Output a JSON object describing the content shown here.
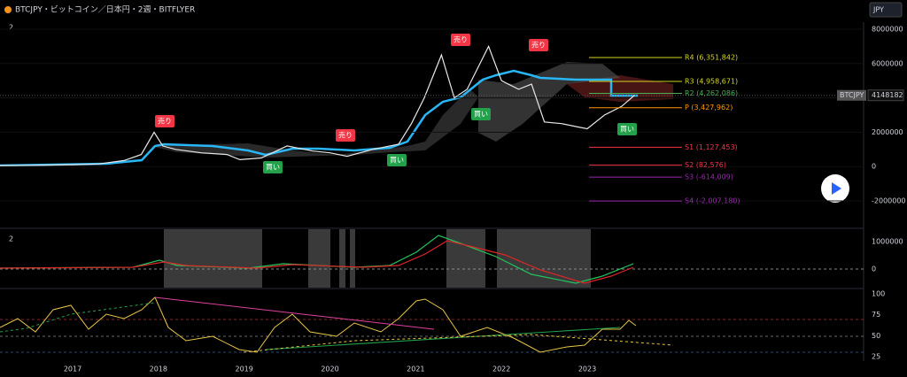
{
  "header": {
    "title": "BTCJPY・ビットコイン／日本円・2週・BITFLYER",
    "currency": "JPY",
    "pane1_toggle": "2",
    "pane2_toggle": "2"
  },
  "price_axis": {
    "ticks": [
      8000000,
      6000000,
      4000000,
      2000000,
      0,
      -2000000
    ]
  },
  "macd_axis": {
    "ticks": [
      1000000,
      0
    ]
  },
  "rsi_axis": {
    "ticks": [
      100,
      75,
      50,
      25
    ]
  },
  "time_axis": {
    "ticks": [
      2017,
      2018,
      2019,
      2020,
      2021,
      2022,
      2023
    ]
  },
  "price_tag": {
    "symbol": "BTCJPY",
    "value": 4148182
  },
  "price": {
    "x": [
      2016.1,
      2016.5,
      2017.0,
      2017.3,
      2017.6,
      2017.8,
      2017.95,
      2018.05,
      2018.2,
      2018.5,
      2018.8,
      2018.95,
      2019.2,
      2019.5,
      2019.8,
      2020.0,
      2020.2,
      2020.5,
      2020.8,
      2020.95,
      2021.1,
      2021.3,
      2021.45,
      2021.6,
      2021.85,
      2022.0,
      2022.2,
      2022.35,
      2022.5,
      2022.7,
      2022.9,
      2023.0,
      2023.2,
      2023.4,
      2023.55
    ],
    "values": [
      50000,
      70000,
      110000,
      150000,
      350000,
      700000,
      2000000,
      1200000,
      1000000,
      800000,
      700000,
      400000,
      500000,
      1200000,
      900000,
      800000,
      600000,
      1000000,
      1300000,
      2500000,
      4000000,
      6500000,
      4000000,
      4500000,
      7000000,
      5000000,
      4500000,
      4800000,
      2600000,
      2500000,
      2300000,
      2200000,
      3000000,
      3500000,
      4148182
    ]
  },
  "pivots": [
    {
      "label": "R4 (6,351,842)",
      "value": 6351842,
      "color": "#d4d41e"
    },
    {
      "label": "R3 (4,958,671)",
      "value": 4958671,
      "color": "#d4d41e"
    },
    {
      "label": "R2 (4,262,086)",
      "value": 4262086,
      "color": "#4caf50"
    },
    {
      "label": "P (3,427,962)",
      "value": 3427962,
      "color": "#ff9800"
    },
    {
      "label": "S1 (1,127,453)",
      "value": 1127453,
      "color": "#f23645"
    },
    {
      "label": "S2 (82,576)",
      "value": 82576,
      "color": "#f23645"
    },
    {
      "label": "S3 (-614,009)",
      "value": -614009,
      "color": "#9c27b0"
    },
    {
      "label": "S4 (-2,007,180)",
      "value": -2007180,
      "color": "#9c27b0"
    }
  ],
  "signals": [
    {
      "text": "売り",
      "kind": "sell"
    },
    {
      "text": "売り",
      "kind": "sell"
    },
    {
      "text": "売り",
      "kind": "sell"
    },
    {
      "text": "売り",
      "kind": "sell"
    },
    {
      "text": "買い",
      "kind": "buy"
    },
    {
      "text": "買い",
      "kind": "buy"
    },
    {
      "text": "買い",
      "kind": "buy"
    },
    {
      "text": "買い",
      "kind": "buy"
    }
  ]
}
